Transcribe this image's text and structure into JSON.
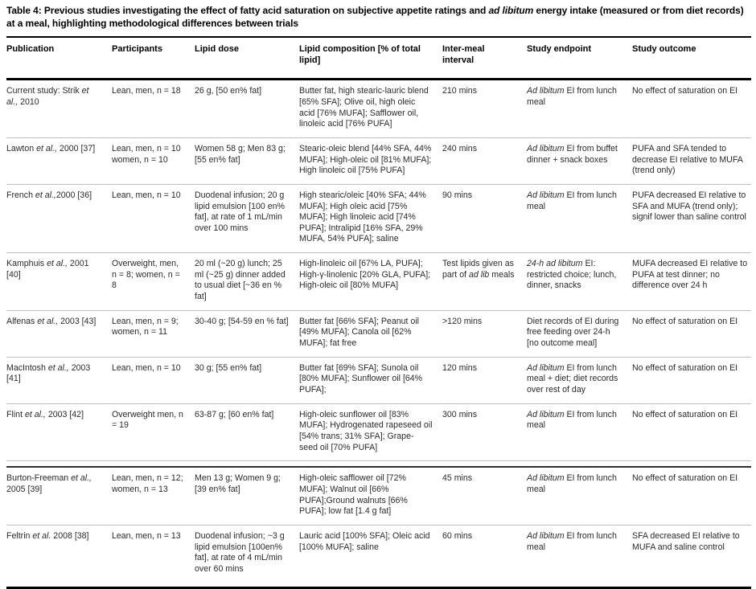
{
  "page": {
    "title_segments": [
      {
        "t": "Table 4: Previous studies investigating the effect of fatty acid saturation on subjective appetite ratings and "
      },
      {
        "t": "ad libitum",
        "i": true
      },
      {
        "t": " energy intake (measured or from diet records) at a meal, highlighting methodological differences between trials"
      }
    ]
  },
  "table": {
    "columns": [
      "Publication",
      "Participants",
      "Lipid dose",
      "Lipid composition [% of total lipid]",
      "Inter-meal interval",
      "Study endpoint",
      "Study outcome"
    ],
    "column_keys": [
      "publication",
      "participants",
      "lipid-dose",
      "lipid-composition",
      "inter-meal-interval",
      "study-endpoint",
      "study-outcome"
    ],
    "rows": [
      {
        "cells": [
          [
            {
              "t": "Current study: Strik "
            },
            {
              "t": "et al.,",
              "i": true
            },
            {
              "t": " 2010"
            }
          ],
          [
            {
              "t": "Lean, men, n = 18"
            }
          ],
          [
            {
              "t": "26 g, [50 en% fat]"
            }
          ],
          [
            {
              "t": "Butter fat, high stearic-lauric blend [65% SFA]; Olive oil, high oleic acid [76% MUFA]; Safflower oil, linoleic acid [76% PUFA]"
            }
          ],
          [
            {
              "t": "210 mins"
            }
          ],
          [
            {
              "t": "Ad libitum",
              "i": true
            },
            {
              "t": " EI from lunch meal"
            }
          ],
          [
            {
              "t": "No effect of saturation on EI"
            }
          ]
        ]
      },
      {
        "cells": [
          [
            {
              "t": "Lawton "
            },
            {
              "t": "et al.,",
              "i": true
            },
            {
              "t": " 2000 [37]"
            }
          ],
          [
            {
              "t": "Lean, men, n = 10 women, n = 10"
            }
          ],
          [
            {
              "t": "Women 58 g; Men 83 g; [55 en% fat]"
            }
          ],
          [
            {
              "t": "Stearic-oleic blend [44% SFA, 44% MUFA]; High-oleic oil [81% MUFA]; High linoleic oil [75% PUFA]"
            }
          ],
          [
            {
              "t": "240 mins"
            }
          ],
          [
            {
              "t": "Ad libitum",
              "i": true
            },
            {
              "t": " EI from buffet dinner + snack boxes"
            }
          ],
          [
            {
              "t": "PUFA and SFA tended to decrease EI relative to MUFA (trend only)"
            }
          ]
        ]
      },
      {
        "cells": [
          [
            {
              "t": "French "
            },
            {
              "t": "et al.,",
              "i": true
            },
            {
              "t": "2000 [36]"
            }
          ],
          [
            {
              "t": "Lean, men, n = 10"
            }
          ],
          [
            {
              "t": "Duodenal infusion; 20 g lipid emulsion [100 en% fat], at rate of 1 mL/min over 100 mins"
            }
          ],
          [
            {
              "t": "High stearic/oleic [40% SFA; 44% MUFA]; High oleic acid [75% MUFA]; High linoleic acid [74% PUFA]; Intralipid [16% SFA, 29% MUFA, 54% PUFA]; saline"
            }
          ],
          [
            {
              "t": "90 mins"
            }
          ],
          [
            {
              "t": "Ad libitum",
              "i": true
            },
            {
              "t": " EI from lunch meal"
            }
          ],
          [
            {
              "t": "PUFA decreased EI relative to SFA and MUFA (trend only); signif lower than saline control"
            }
          ]
        ]
      },
      {
        "cells": [
          [
            {
              "t": "Kamphuis "
            },
            {
              "t": "et al.,",
              "i": true
            },
            {
              "t": " 2001 [40]"
            }
          ],
          [
            {
              "t": "Overweight, men, n = 8; women, n = 8"
            }
          ],
          [
            {
              "t": "20 ml (~20 g) lunch; 25 ml (~25 g) dinner added to usual diet [~36 en % fat]"
            }
          ],
          [
            {
              "t": "High-linoleic oil [67% LA, PUFA]; High-γ-linolenic [20% GLA, PUFA]; High-oleic oil [80% MUFA]"
            }
          ],
          [
            {
              "t": "Test lipids given as part of "
            },
            {
              "t": "ad lib",
              "i": true
            },
            {
              "t": " meals"
            }
          ],
          [
            {
              "t": "24-h ad libitum",
              "i": true
            },
            {
              "t": " EI: restricted choice; lunch, dinner, snacks"
            }
          ],
          [
            {
              "t": "MUFA decreased EI relative to PUFA at test dinner; no difference over 24 h"
            }
          ]
        ]
      },
      {
        "cells": [
          [
            {
              "t": "Alfenas "
            },
            {
              "t": "et al.,",
              "i": true
            },
            {
              "t": " 2003 [43]"
            }
          ],
          [
            {
              "t": "Lean, men, n = 9; women, n = 11"
            }
          ],
          [
            {
              "t": "30-40 g; [54-59 en % fat]"
            }
          ],
          [
            {
              "t": "Butter fat [66% SFA]; Peanut oil [49% MUFA]; Canola oil [62% MUFA]; fat free"
            }
          ],
          [
            {
              "t": ">120 mins"
            }
          ],
          [
            {
              "t": "Diet records of EI during free feeding over 24-h [no outcome meal]"
            }
          ],
          [
            {
              "t": "No effect of saturation on EI"
            }
          ]
        ]
      },
      {
        "cells": [
          [
            {
              "t": "MacIntosh "
            },
            {
              "t": "et al.,",
              "i": true
            },
            {
              "t": " 2003 [41]"
            }
          ],
          [
            {
              "t": "Lean, men, n = 10"
            }
          ],
          [
            {
              "t": "30 g; [55 en% fat]"
            }
          ],
          [
            {
              "t": "Butter fat [69% SFA]; Sunola oil [80% MUFA]; Sunflower oil [64% PUFA];"
            }
          ],
          [
            {
              "t": "120 mins"
            }
          ],
          [
            {
              "t": "Ad libitum",
              "i": true
            },
            {
              "t": " EI from lunch meal + diet; diet records over rest of day"
            }
          ],
          [
            {
              "t": "No effect of saturation on EI"
            }
          ]
        ]
      },
      {
        "cells": [
          [
            {
              "t": "Flint "
            },
            {
              "t": "et al.,",
              "i": true
            },
            {
              "t": " 2003 [42]"
            }
          ],
          [
            {
              "t": "Overweight men, n = 19"
            }
          ],
          [
            {
              "t": "63-87 g; [60 en% fat]"
            }
          ],
          [
            {
              "t": "High-oleic sunflower oil [83% MUFA]; Hydrogenated rapeseed oil [54% trans; 31% SFA]; Grape- seed oil [70% PUFA]"
            }
          ],
          [
            {
              "t": "300 mins"
            }
          ],
          [
            {
              "t": "Ad libitum",
              "i": true
            },
            {
              "t": " EI from lunch meal"
            }
          ],
          [
            {
              "t": "No effect of saturation on EI"
            }
          ]
        ]
      },
      {
        "section_start": true,
        "cells": [
          [
            {
              "t": "Burton-Freeman "
            },
            {
              "t": "et al.,",
              "i": true
            },
            {
              "t": " 2005 [39]"
            }
          ],
          [
            {
              "t": "Lean, men, n = 12; women, n = 13"
            }
          ],
          [
            {
              "t": "Men 13 g; Women 9 g; [39 en% fat]"
            }
          ],
          [
            {
              "t": "High-oleic safflower oil [72% MUFA]; Walnut oil [66% PUFA];Ground walnuts [66% PUFA]; low fat [1.4 g fat]"
            }
          ],
          [
            {
              "t": "45 mins"
            }
          ],
          [
            {
              "t": "Ad libitum",
              "i": true
            },
            {
              "t": " EI from lunch meal"
            }
          ],
          [
            {
              "t": "No effect of saturation on EI"
            }
          ]
        ]
      },
      {
        "cells": [
          [
            {
              "t": "Feltrin "
            },
            {
              "t": "et al.",
              "i": true
            },
            {
              "t": " 2008 [38]"
            }
          ],
          [
            {
              "t": "Lean, men, n = 13"
            }
          ],
          [
            {
              "t": "Duodenal infusion; ~3 g lipid emulsion [100en% fat], at rate of 4 mL/min over 60 mins"
            }
          ],
          [
            {
              "t": "Lauric acid [100% SFA]; Oleic acid [100% MUFA]; saline"
            }
          ],
          [
            {
              "t": "60 mins"
            }
          ],
          [
            {
              "t": "Ad libitum",
              "i": true
            },
            {
              "t": " EI from lunch meal"
            }
          ],
          [
            {
              "t": "SFA decreased EI relative to MUFA and saline control"
            }
          ]
        ]
      }
    ]
  },
  "colors": {
    "rule_heavy": "#000000",
    "rule_light": "#bfbfbf",
    "rule_section": "#2e2e2e",
    "text": "#2a2a2a"
  }
}
